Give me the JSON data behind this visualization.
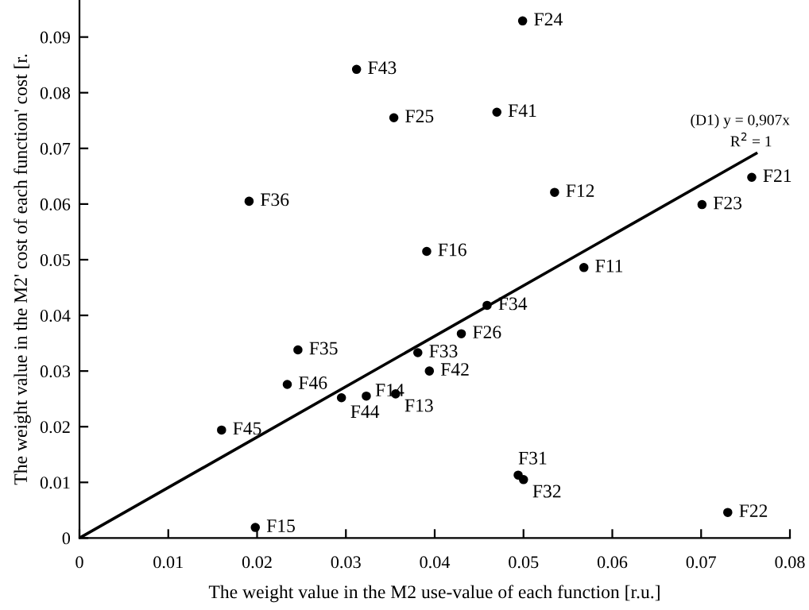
{
  "chart_data": {
    "type": "scatter",
    "xlabel": "The weight value in the M2 use-value of each function [r.u.]",
    "ylabel": "The weight value in the M2' cost of each function' cost [r.",
    "xlim": [
      0,
      0.08
    ],
    "xticks": [
      0,
      0.01,
      0.02,
      0.03,
      0.04,
      0.05,
      0.06,
      0.07,
      0.08
    ],
    "ylim": [
      0,
      0.0966
    ],
    "yticks": [
      0,
      0.01,
      0.02,
      0.03,
      0.04,
      0.05,
      0.06,
      0.07,
      0.08,
      0.09
    ],
    "grid": false,
    "legend": false,
    "series": [
      {
        "color": "#000000",
        "marker": "circle",
        "x": [
          0.0499,
          0.0312,
          0.0354,
          0.047,
          0.0191,
          0.0535,
          0.0757,
          0.0701,
          0.0391,
          0.0568,
          0.0459,
          0.043,
          0.0381,
          0.0394,
          0.0246,
          0.0234,
          0.0295,
          0.0323,
          0.0356,
          0.016,
          0.0198,
          0.0494,
          0.05,
          0.073
        ],
        "values": [
          0.0929,
          0.0842,
          0.0755,
          0.0765,
          0.0605,
          0.0621,
          0.0648,
          0.0599,
          0.0515,
          0.0486,
          0.0418,
          0.0367,
          0.0333,
          0.03,
          0.0338,
          0.0276,
          0.0252,
          0.0255,
          0.0259,
          0.0194,
          0.0019,
          0.0113,
          0.0105,
          0.0046
        ]
      },
      {
        "type": "line",
        "color": "#000000",
        "x": [
          0,
          0.0762
        ],
        "values": [
          0,
          0.0691
        ]
      }
    ],
    "annotations": [
      {
        "text": "F24",
        "x": 0.0499,
        "y": 0.0929
      },
      {
        "text": "F43",
        "x": 0.0312,
        "y": 0.0842
      },
      {
        "text": "F25",
        "x": 0.0354,
        "y": 0.0755
      },
      {
        "text": "F41",
        "x": 0.047,
        "y": 0.0765
      },
      {
        "text": "F36",
        "x": 0.0191,
        "y": 0.0605
      },
      {
        "text": "F12",
        "x": 0.0535,
        "y": 0.0621
      },
      {
        "text": "F21",
        "x": 0.0757,
        "y": 0.0648
      },
      {
        "text": "F23",
        "x": 0.0701,
        "y": 0.0599
      },
      {
        "text": "F16",
        "x": 0.0391,
        "y": 0.0515
      },
      {
        "text": "F11",
        "x": 0.0568,
        "y": 0.0486
      },
      {
        "text": "F34",
        "x": 0.0459,
        "y": 0.0418
      },
      {
        "text": "F26",
        "x": 0.043,
        "y": 0.0367
      },
      {
        "text": "F33",
        "x": 0.0381,
        "y": 0.0333
      },
      {
        "text": "F42",
        "x": 0.0394,
        "y": 0.03
      },
      {
        "text": "F35",
        "x": 0.0246,
        "y": 0.0338
      },
      {
        "text": "F46",
        "x": 0.0234,
        "y": 0.0276
      },
      {
        "text": "F44",
        "x": 0.0295,
        "y": 0.0252
      },
      {
        "text": "F14",
        "x": 0.0323,
        "y": 0.0255
      },
      {
        "text": "F13",
        "x": 0.0356,
        "y": 0.0259
      },
      {
        "text": "F45",
        "x": 0.016,
        "y": 0.0194
      },
      {
        "text": "F15",
        "x": 0.0198,
        "y": 0.0019
      },
      {
        "text": "F31",
        "x": 0.0494,
        "y": 0.0113
      },
      {
        "text": "F32",
        "x": 0.05,
        "y": 0.0105
      },
      {
        "text": "F22",
        "x": 0.073,
        "y": 0.0046
      },
      "(D1) y = 0,907x",
      "R$^{2}$ = 1"
    ]
  }
}
